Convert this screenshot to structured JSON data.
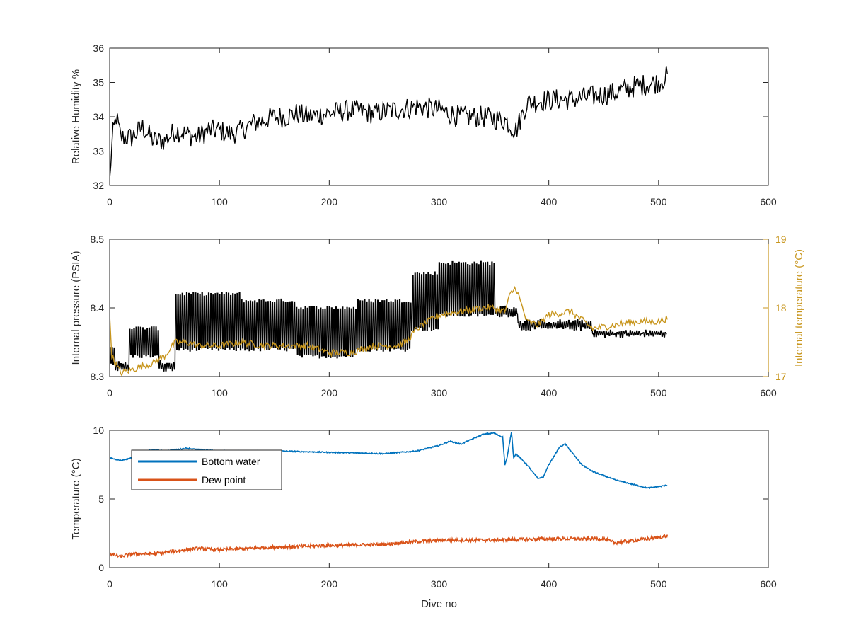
{
  "chart_data": [
    {
      "type": "line",
      "xlabel": "",
      "ylabel": "Relative Humidity %",
      "xlim": [
        0,
        600
      ],
      "ylim": [
        32,
        36
      ],
      "x_ticks": [
        "0",
        "100",
        "200",
        "300",
        "400",
        "500",
        "600"
      ],
      "y_ticks": [
        "32",
        "33",
        "34",
        "35",
        "36"
      ],
      "series": [
        {
          "color": "#000000",
          "noise": 0.32,
          "x": [
            0,
            1,
            3,
            6,
            10,
            20,
            30,
            40,
            50,
            60,
            70,
            80,
            90,
            100,
            110,
            120,
            130,
            140,
            150,
            160,
            170,
            180,
            200,
            220,
            240,
            260,
            280,
            300,
            320,
            340,
            360,
            370,
            380,
            400,
            420,
            440,
            460,
            480,
            500,
            508
          ],
          "y": [
            32.1,
            32.7,
            33.5,
            34.0,
            33.4,
            33.4,
            33.7,
            33.3,
            33.3,
            33.6,
            33.5,
            33.4,
            33.6,
            33.6,
            33.5,
            33.6,
            33.8,
            33.9,
            34.0,
            34.0,
            34.1,
            34.0,
            34.1,
            34.2,
            34.1,
            34.2,
            34.3,
            34.2,
            34.0,
            34.0,
            33.9,
            33.6,
            34.4,
            34.5,
            34.5,
            34.6,
            34.7,
            34.9,
            35.0,
            35.2
          ]
        }
      ]
    },
    {
      "type": "line",
      "xlabel": "",
      "ylabel": "Internal pressure (PSIA)",
      "y2label": "Internal temperature (°C)",
      "xlim": [
        0,
        600
      ],
      "ylim": [
        8.3,
        8.5
      ],
      "y2lim": [
        17,
        19
      ],
      "x_ticks": [
        "0",
        "100",
        "200",
        "300",
        "400",
        "500",
        "600"
      ],
      "y_ticks": [
        "8.3",
        "8.4",
        "8.5"
      ],
      "y2_ticks": [
        "17",
        "18",
        "19"
      ],
      "series": [
        {
          "color": "#000000",
          "axis": "left",
          "pattern": "sawtooth",
          "segments": [
            {
              "x": [
                0,
                5
              ],
              "low": 8.32,
              "high": 8.34
            },
            {
              "x": [
                5,
                18
              ],
              "low": 8.31,
              "high": 8.32
            },
            {
              "x": [
                18,
                45
              ],
              "low": 8.33,
              "high": 8.37
            },
            {
              "x": [
                45,
                60
              ],
              "low": 8.31,
              "high": 8.32
            },
            {
              "x": [
                60,
                120
              ],
              "low": 8.34,
              "high": 8.42
            },
            {
              "x": [
                120,
                170
              ],
              "low": 8.34,
              "high": 8.41
            },
            {
              "x": [
                170,
                225
              ],
              "low": 8.33,
              "high": 8.4
            },
            {
              "x": [
                225,
                275
              ],
              "low": 8.34,
              "high": 8.41
            },
            {
              "x": [
                275,
                300
              ],
              "low": 8.37,
              "high": 8.45
            },
            {
              "x": [
                300,
                352
              ],
              "low": 8.39,
              "high": 8.465
            },
            {
              "x": [
                352,
                372
              ],
              "low": 8.39,
              "high": 8.4
            },
            {
              "x": [
                372,
                440
              ],
              "low": 8.37,
              "high": 8.38
            },
            {
              "x": [
                440,
                508
              ],
              "low": 8.36,
              "high": 8.365
            }
          ]
        },
        {
          "color": "#c8961e",
          "axis": "right",
          "noise": 0.05,
          "x": [
            0,
            2,
            5,
            10,
            20,
            30,
            40,
            50,
            60,
            70,
            80,
            100,
            120,
            140,
            160,
            180,
            200,
            220,
            240,
            260,
            270,
            280,
            300,
            320,
            340,
            350,
            360,
            365,
            370,
            380,
            390,
            400,
            420,
            440,
            460,
            480,
            500,
            508
          ],
          "y": [
            17.9,
            17.3,
            17.2,
            17.05,
            17.1,
            17.15,
            17.2,
            17.3,
            17.5,
            17.5,
            17.45,
            17.45,
            17.5,
            17.45,
            17.45,
            17.45,
            17.35,
            17.35,
            17.45,
            17.45,
            17.5,
            17.7,
            17.9,
            17.95,
            18.0,
            18.0,
            17.95,
            18.2,
            18.3,
            17.8,
            17.75,
            17.9,
            17.95,
            17.7,
            17.75,
            17.8,
            17.8,
            17.85
          ]
        }
      ]
    },
    {
      "type": "line",
      "xlabel": "Dive no",
      "ylabel": "Temperature (°C)",
      "xlim": [
        0,
        600
      ],
      "ylim": [
        0,
        10
      ],
      "x_ticks": [
        "0",
        "100",
        "200",
        "300",
        "400",
        "500",
        "600"
      ],
      "y_ticks": [
        "0",
        "5",
        "10"
      ],
      "legend_position": "top-left",
      "series": [
        {
          "name": "Bottom water",
          "color": "#0072bd",
          "noise": 0.04,
          "x": [
            0,
            10,
            20,
            30,
            40,
            50,
            60,
            70,
            80,
            100,
            150,
            200,
            250,
            280,
            300,
            310,
            320,
            340,
            350,
            358,
            360,
            362,
            366,
            368,
            370,
            380,
            390,
            395,
            400,
            410,
            415,
            420,
            430,
            440,
            450,
            460,
            470,
            480,
            490,
            500,
            508
          ],
          "y": [
            8.0,
            7.8,
            8.0,
            8.4,
            8.6,
            8.5,
            8.6,
            8.7,
            8.6,
            8.5,
            8.5,
            8.4,
            8.3,
            8.5,
            8.9,
            9.2,
            9.0,
            9.7,
            9.8,
            9.5,
            7.5,
            8.0,
            9.9,
            8.0,
            8.3,
            7.5,
            6.5,
            6.6,
            7.5,
            8.8,
            9.0,
            8.5,
            7.5,
            7.0,
            6.7,
            6.4,
            6.2,
            6.0,
            5.8,
            5.9,
            6.0
          ]
        },
        {
          "name": "Dew point",
          "color": "#d95319",
          "noise": 0.12,
          "x": [
            0,
            10,
            20,
            30,
            40,
            50,
            60,
            80,
            100,
            150,
            200,
            250,
            280,
            300,
            350,
            400,
            450,
            460,
            500,
            508
          ],
          "y": [
            1.0,
            0.8,
            1.0,
            1.0,
            1.0,
            1.1,
            1.2,
            1.4,
            1.3,
            1.5,
            1.6,
            1.7,
            1.9,
            2.0,
            2.0,
            2.1,
            2.1,
            1.8,
            2.2,
            2.3
          ]
        }
      ]
    }
  ]
}
